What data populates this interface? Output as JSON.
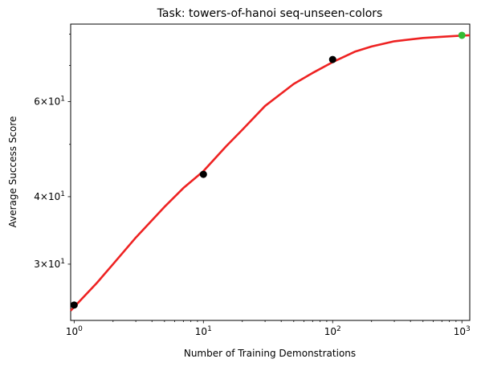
{
  "chart_data": {
    "type": "scatter",
    "title": "Task: towers-of-hanoi seq-unseen-colors",
    "xlabel": "Number of Training Demonstrations",
    "ylabel": "Average Success Score",
    "x_scale": "log",
    "y_scale": "log",
    "xlim": [
      0.94,
      1150
    ],
    "ylim": [
      23.6,
      83.5
    ],
    "x_ticks": [
      {
        "value": 1,
        "base": "10",
        "exp": "0"
      },
      {
        "value": 10,
        "base": "10",
        "exp": "1"
      },
      {
        "value": 100,
        "base": "10",
        "exp": "2"
      },
      {
        "value": 1000,
        "base": "10",
        "exp": "3"
      }
    ],
    "y_ticks": [
      {
        "value": 30,
        "mant": "3",
        "base": "10",
        "exp": "1"
      },
      {
        "value": 40,
        "mant": "4",
        "base": "10",
        "exp": "1"
      },
      {
        "value": 60,
        "mant": "6",
        "base": "10",
        "exp": "1"
      }
    ],
    "grid": false,
    "series": [
      {
        "kind": "points",
        "color": "#000000",
        "x": [
          1,
          10,
          100
        ],
        "y": [
          25.2,
          44.0,
          71.8
        ]
      },
      {
        "kind": "points",
        "color": "#33bb33",
        "x": [
          1000
        ],
        "y": [
          79.6
        ]
      },
      {
        "kind": "fit-curve",
        "color": "#ee2222",
        "x": [
          0.94,
          1.5,
          2,
          3,
          5,
          7,
          10,
          15,
          20,
          30,
          50,
          70,
          100,
          150,
          200,
          300,
          500,
          700,
          1000,
          1150
        ],
        "y": [
          24.6,
          27.7,
          30.0,
          33.6,
          38.3,
          41.5,
          44.6,
          49.6,
          53.2,
          58.9,
          64.7,
          67.8,
          71.0,
          74.3,
          75.9,
          77.6,
          78.7,
          79.1,
          79.5,
          79.6
        ]
      }
    ]
  }
}
